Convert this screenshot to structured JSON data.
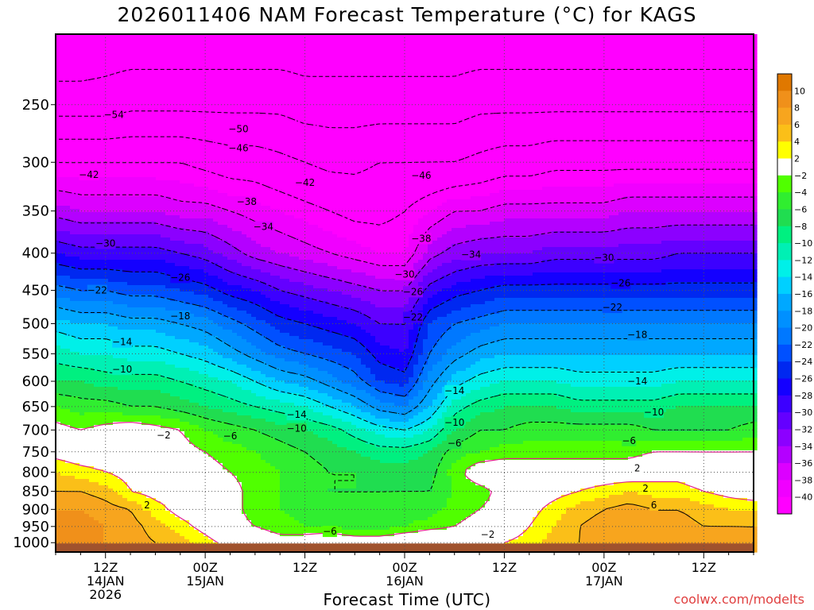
{
  "title": "2026011406 NAM Forecast Temperature (°C) for KAGS",
  "credit": "coolwx.com/modelts",
  "chart_data": {
    "type": "heatmap",
    "title": "2026011406 NAM Forecast Temperature (°C) for KAGS",
    "xlabel": "Forecast Time (UTC)",
    "ylabel": "",
    "y_scale": "log-pressure (hPa)",
    "ylim": [
      1030,
      200
    ],
    "xlim_hours": [
      0,
      84
    ],
    "y_ticks": [
      250,
      300,
      350,
      400,
      450,
      500,
      550,
      600,
      650,
      700,
      750,
      800,
      850,
      900,
      950,
      1000
    ],
    "x_ticks": [
      {
        "hour": 6,
        "label": "12Z",
        "date": "14JAN",
        "year": "2026"
      },
      {
        "hour": 18,
        "label": "00Z",
        "date": "15JAN",
        "year": ""
      },
      {
        "hour": 30,
        "label": "12Z",
        "date": "",
        "year": ""
      },
      {
        "hour": 42,
        "label": "00Z",
        "date": "16JAN",
        "year": ""
      },
      {
        "hour": 54,
        "label": "12Z",
        "date": "",
        "year": ""
      },
      {
        "hour": 66,
        "label": "00Z",
        "date": "17JAN",
        "year": ""
      },
      {
        "hour": 78,
        "label": "12Z",
        "date": "",
        "year": ""
      }
    ],
    "colorbar": {
      "labels": [
        "10",
        "8",
        "6",
        "4",
        "2",
        "-2",
        "-4",
        "-6",
        "-8",
        "-10",
        "-12",
        "-14",
        "-16",
        "-18",
        "-20",
        "-22",
        "-24",
        "-26",
        "-28",
        "-30",
        "-32",
        "-34",
        "-36",
        "-38",
        "-40"
      ],
      "bands": [
        {
          "lo": 10,
          "hi": 12,
          "color": "#e07800"
        },
        {
          "lo": 8,
          "hi": 10,
          "color": "#f0901a"
        },
        {
          "lo": 6,
          "hi": 8,
          "color": "#f7a51e"
        },
        {
          "lo": 4,
          "hi": 6,
          "color": "#fbbf18"
        },
        {
          "lo": 2,
          "hi": 4,
          "color": "#ffff00"
        },
        {
          "lo": -2,
          "hi": 2,
          "color": "#ffffff"
        },
        {
          "lo": -4,
          "hi": -2,
          "color": "#50ff00"
        },
        {
          "lo": -6,
          "hi": -4,
          "color": "#30ee30"
        },
        {
          "lo": -8,
          "hi": -6,
          "color": "#20dd50"
        },
        {
          "lo": -10,
          "hi": -8,
          "color": "#00f080"
        },
        {
          "lo": -12,
          "hi": -10,
          "color": "#00f0b4"
        },
        {
          "lo": -14,
          "hi": -12,
          "color": "#00f0e8"
        },
        {
          "lo": -16,
          "hi": -14,
          "color": "#00d0ff"
        },
        {
          "lo": -18,
          "hi": -16,
          "color": "#00a8ff"
        },
        {
          "lo": -20,
          "hi": -18,
          "color": "#0090ff"
        },
        {
          "lo": -22,
          "hi": -20,
          "color": "#0078ff"
        },
        {
          "lo": -24,
          "hi": -22,
          "color": "#0050ff"
        },
        {
          "lo": -26,
          "hi": -24,
          "color": "#0028f0"
        },
        {
          "lo": -28,
          "hi": -26,
          "color": "#1400ff"
        },
        {
          "lo": -30,
          "hi": -28,
          "color": "#3c00ff"
        },
        {
          "lo": -32,
          "hi": -30,
          "color": "#6400ff"
        },
        {
          "lo": -34,
          "hi": -32,
          "color": "#8c00ff"
        },
        {
          "lo": -36,
          "hi": -34,
          "color": "#b400ff"
        },
        {
          "lo": -38,
          "hi": -36,
          "color": "#dc00ff"
        },
        {
          "lo": -40,
          "hi": -38,
          "color": "#f000ff"
        },
        {
          "lo": -60,
          "hi": -40,
          "color": "#ff00ff"
        }
      ]
    },
    "hours": [
      0,
      3,
      6,
      9,
      12,
      15,
      18,
      21,
      24,
      27,
      30,
      33,
      36,
      39,
      42,
      45,
      48,
      51,
      54,
      57,
      60,
      63,
      66,
      69,
      72,
      75,
      78,
      81,
      84
    ],
    "levels_hPa": [
      1000,
      950,
      900,
      850,
      800,
      750,
      700,
      650,
      600,
      550,
      500,
      450,
      400,
      350,
      300,
      250,
      200
    ],
    "temps_by_level": [
      [
        10,
        9,
        8,
        7,
        6,
        5,
        3,
        1,
        0,
        -1,
        0,
        1,
        0,
        0,
        1,
        2,
        1,
        1,
        2,
        3,
        5,
        6,
        7,
        8,
        8,
        8,
        8,
        8,
        7
      ],
      [
        9,
        9,
        8,
        7,
        5,
        3,
        1,
        -1,
        -2,
        -3,
        -4,
        -4,
        -5,
        -5,
        -4,
        -3,
        -2,
        -1,
        0,
        2,
        4,
        6,
        7,
        7,
        7,
        7,
        6,
        6,
        6
      ],
      [
        8,
        8,
        7,
        6,
        3,
        1,
        0,
        -1,
        -3,
        -4,
        -5,
        -6,
        -6,
        -6,
        -5,
        -5,
        -3,
        -2,
        -1,
        1,
        3,
        5,
        6,
        7,
        6,
        6,
        5,
        4,
        4
      ],
      [
        6,
        6,
        5,
        2,
        1,
        1,
        0,
        -1,
        -3,
        -4,
        -5,
        -6,
        -6,
        -6,
        -6,
        -6,
        -4,
        -3,
        -1,
        0,
        1,
        2,
        3,
        4,
        3,
        3,
        2,
        1,
        0
      ],
      [
        4,
        3,
        2,
        1,
        2,
        0,
        -1,
        -2,
        -3,
        -4,
        -5,
        -6,
        -6,
        -7,
        -7,
        -7,
        -3,
        0,
        0,
        0,
        0,
        0,
        0,
        0,
        1,
        1,
        0,
        0,
        0
      ],
      [
        1,
        0,
        0,
        1,
        1,
        -1,
        -2,
        -3,
        -4,
        -5,
        -6,
        -7,
        -8,
        -9,
        -9,
        -8,
        -5,
        -4,
        -3,
        -3,
        -3,
        -3,
        -3,
        -3,
        -2,
        -2,
        -2,
        -2,
        -2
      ],
      [
        -1,
        -2,
        -1,
        0,
        -1,
        -2,
        -4,
        -5,
        -6,
        -7,
        -8,
        -9,
        -11,
        -13,
        -14,
        -12,
        -8,
        -6,
        -6,
        -5,
        -5,
        -5,
        -5,
        -5,
        -6,
        -6,
        -6,
        -6,
        -5
      ],
      [
        -4,
        -5,
        -5,
        -6,
        -6,
        -7,
        -8,
        -9,
        -10,
        -11,
        -12,
        -14,
        -16,
        -19,
        -20,
        -16,
        -11,
        -9,
        -8,
        -8,
        -8,
        -9,
        -9,
        -9,
        -9,
        -8,
        -8,
        -8,
        -8
      ],
      [
        -8,
        -8,
        -9,
        -9,
        -9,
        -10,
        -11,
        -12,
        -14,
        -16,
        -17,
        -19,
        -21,
        -24,
        -25,
        -19,
        -15,
        -13,
        -12,
        -12,
        -12,
        -13,
        -13,
        -13,
        -13,
        -12,
        -12,
        -12,
        -12
      ],
      [
        -11,
        -12,
        -12,
        -13,
        -13,
        -14,
        -15,
        -17,
        -19,
        -21,
        -22,
        -23,
        -24,
        -27,
        -28,
        -22,
        -19,
        -17,
        -16,
        -16,
        -16,
        -16,
        -16,
        -16,
        -16,
        -16,
        -16,
        -16,
        -16
      ],
      [
        -15,
        -16,
        -16,
        -17,
        -17,
        -18,
        -19,
        -21,
        -23,
        -25,
        -26,
        -27,
        -28,
        -30,
        -30,
        -24,
        -22,
        -21,
        -20,
        -20,
        -20,
        -20,
        -20,
        -20,
        -20,
        -20,
        -20,
        -20,
        -20
      ],
      [
        -21,
        -22,
        -22,
        -23,
        -23,
        -24,
        -25,
        -27,
        -28,
        -30,
        -31,
        -32,
        -33,
        -34,
        -34,
        -29,
        -27,
        -26,
        -25,
        -25,
        -25,
        -25,
        -25,
        -25,
        -25,
        -25,
        -25,
        -25,
        -25
      ],
      [
        -28,
        -29,
        -29,
        -29,
        -29,
        -30,
        -31,
        -33,
        -35,
        -36,
        -37,
        -38,
        -39,
        -40,
        -40,
        -35,
        -33,
        -32,
        -32,
        -32,
        -31,
        -31,
        -31,
        -31,
        -31,
        -30,
        -30,
        -30,
        -30
      ],
      [
        -35,
        -36,
        -36,
        -36,
        -36,
        -37,
        -37,
        -38,
        -39,
        -40,
        -41,
        -42,
        -43,
        -43,
        -42,
        -40,
        -38,
        -38,
        -37,
        -37,
        -37,
        -37,
        -37,
        -36,
        -36,
        -36,
        -36,
        -36,
        -36
      ],
      [
        -42,
        -42,
        -42,
        -42,
        -42,
        -42,
        -43,
        -44,
        -44,
        -45,
        -46,
        -47,
        -47,
        -46,
        -46,
        -46,
        -46,
        -45,
        -44,
        -44,
        -43,
        -43,
        -43,
        -43,
        -43,
        -43,
        -43,
        -43,
        -43
      ],
      [
        -52,
        -52,
        -52,
        -51,
        -51,
        -51,
        -51,
        -51,
        -51,
        -51,
        -52,
        -52,
        -52,
        -52,
        -52,
        -52,
        -52,
        -51,
        -51,
        -51,
        -51,
        -51,
        -51,
        -51,
        -51,
        -51,
        -51,
        -51,
        -51
      ],
      [
        -58,
        -58,
        -57,
        -57,
        -57,
        -57,
        -57,
        -57,
        -57,
        -57,
        -57,
        -57,
        -57,
        -57,
        -57,
        -57,
        -57,
        -57,
        -57,
        -57,
        -57,
        -57,
        -57,
        -57,
        -57,
        -57,
        -57,
        -57,
        -57
      ]
    ],
    "contour_levels": [
      -54,
      -50,
      -46,
      -42,
      -38,
      -34,
      -30,
      -26,
      -22,
      -18,
      -14,
      -10,
      -6,
      -2,
      2,
      6,
      10
    ],
    "contour_labels": [
      {
        "text": "-54",
        "hour": 7,
        "p": 258
      },
      {
        "text": "-50",
        "hour": 22,
        "p": 270
      },
      {
        "text": "-46",
        "hour": 22,
        "p": 287
      },
      {
        "text": "-42",
        "hour": 4,
        "p": 312
      },
      {
        "text": "-42",
        "hour": 30,
        "p": 320
      },
      {
        "text": "-46",
        "hour": 44,
        "p": 313
      },
      {
        "text": "-38",
        "hour": 23,
        "p": 340
      },
      {
        "text": "-34",
        "hour": 25,
        "p": 368
      },
      {
        "text": "-38",
        "hour": 44,
        "p": 382
      },
      {
        "text": "-30",
        "hour": 6,
        "p": 388
      },
      {
        "text": "-34",
        "hour": 50,
        "p": 402
      },
      {
        "text": "-30",
        "hour": 66,
        "p": 406
      },
      {
        "text": "-26",
        "hour": 15,
        "p": 432
      },
      {
        "text": "-30",
        "hour": 42,
        "p": 428
      },
      {
        "text": "-22",
        "hour": 5,
        "p": 450
      },
      {
        "text": "-26",
        "hour": 43,
        "p": 452
      },
      {
        "text": "-26",
        "hour": 68,
        "p": 440
      },
      {
        "text": "-22",
        "hour": 43,
        "p": 490
      },
      {
        "text": "-22",
        "hour": 67,
        "p": 475
      },
      {
        "text": "-18",
        "hour": 15,
        "p": 488
      },
      {
        "text": "-18",
        "hour": 70,
        "p": 518
      },
      {
        "text": "-14",
        "hour": 8,
        "p": 530
      },
      {
        "text": "-10",
        "hour": 8,
        "p": 578
      },
      {
        "text": "-14",
        "hour": 48,
        "p": 618
      },
      {
        "text": "-14",
        "hour": 70,
        "p": 600
      },
      {
        "text": "-14",
        "hour": 29,
        "p": 667
      },
      {
        "text": "-10",
        "hour": 29,
        "p": 697
      },
      {
        "text": "-10",
        "hour": 48,
        "p": 684
      },
      {
        "text": "-10",
        "hour": 72,
        "p": 662
      },
      {
        "text": "-6",
        "hour": 21,
        "p": 714
      },
      {
        "text": "-6",
        "hour": 48,
        "p": 730
      },
      {
        "text": "-6",
        "hour": 69,
        "p": 724
      },
      {
        "text": "-2",
        "hour": 13,
        "p": 712
      },
      {
        "text": "-2",
        "hour": 52,
        "p": 975
      },
      {
        "text": "-6",
        "hour": 33,
        "p": 965
      },
      {
        "text": "2",
        "hour": 11,
        "p": 888
      },
      {
        "text": "2",
        "hour": 70,
        "p": 790
      },
      {
        "text": "2",
        "hour": 71,
        "p": 842
      },
      {
        "text": "6",
        "hour": 72,
        "p": 888
      }
    ]
  }
}
